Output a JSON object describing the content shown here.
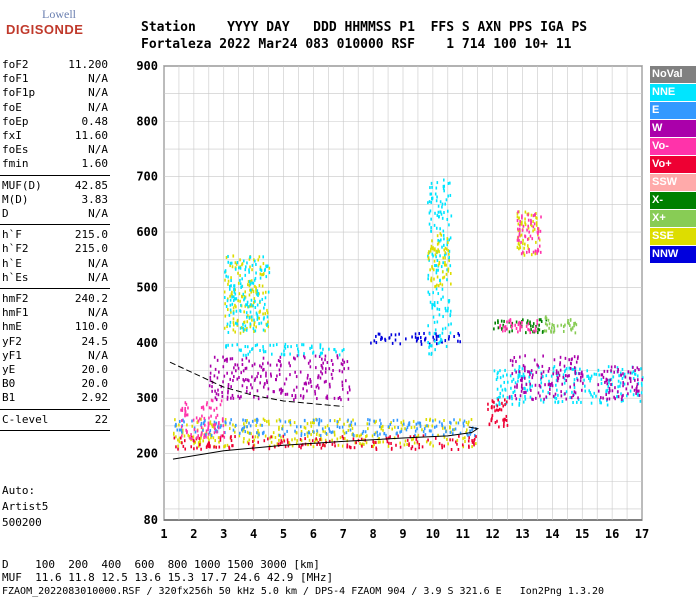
{
  "logo": {
    "top": "Lowell",
    "main": "DIGISONDE"
  },
  "header": {
    "line1": "Station    YYYY DAY   DDD HHMMSS P1  FFS S AXN PPS IGA PS",
    "line2": "Fortaleza 2022 Mar24 083 010000 RSF    1 714 100 10+ 11"
  },
  "params": [
    {
      "k": "foF2",
      "v": "11.200"
    },
    {
      "k": "foF1",
      "v": "N/A"
    },
    {
      "k": "foF1p",
      "v": "N/A"
    },
    {
      "k": "foE",
      "v": "N/A"
    },
    {
      "k": "foEp",
      "v": "0.48"
    },
    {
      "k": "fxI",
      "v": "11.60"
    },
    {
      "k": "foEs",
      "v": "N/A"
    },
    {
      "k": "fmin",
      "v": "1.60"
    },
    {
      "k": "MUF(D)",
      "v": "42.85"
    },
    {
      "k": "M(D)",
      "v": "3.83"
    },
    {
      "k": "D",
      "v": "N/A"
    },
    {
      "k": "h`F",
      "v": "215.0"
    },
    {
      "k": "h`F2",
      "v": "215.0"
    },
    {
      "k": "h`E",
      "v": "N/A"
    },
    {
      "k": "h`Es",
      "v": "N/A"
    },
    {
      "k": "hmF2",
      "v": "240.2"
    },
    {
      "k": "hmF1",
      "v": "N/A"
    },
    {
      "k": "hmE",
      "v": "110.0"
    },
    {
      "k": "yF2",
      "v": "24.5"
    },
    {
      "k": "yF1",
      "v": "N/A"
    },
    {
      "k": "yE",
      "v": "20.0"
    },
    {
      "k": "B0",
      "v": "20.0"
    },
    {
      "k": "B1",
      "v": "2.92"
    },
    {
      "k": "C-level",
      "v": "22"
    }
  ],
  "auto": {
    "label": "Auto:",
    "system": "Artist5",
    "version": "500200"
  },
  "footer": {
    "d_line": "D    100  200  400  600  800 1000 1500 3000 [km]",
    "muf_line": "MUF  11.6 11.8 12.5 13.6 15.3 17.7 24.6 42.9 [MHz]",
    "file_line": "FZAOM_2022083010000.RSF / 320fx256h 50 kHz 5.0 km / DPS-4 FZAOM 904 / 3.9 S 321.6 E   Ion2Png 1.3.20"
  },
  "legend": [
    {
      "label": "NoVal",
      "color": "#808080"
    },
    {
      "label": "NNE",
      "color": "#00e5ff"
    },
    {
      "label": "E",
      "color": "#3399ff"
    },
    {
      "label": "W",
      "color": "#aa00aa"
    },
    {
      "label": "Vo-",
      "color": "#ff33aa"
    },
    {
      "label": "Vo+",
      "color": "#ee0033"
    },
    {
      "label": "SSW",
      "color": "#ffaaaa"
    },
    {
      "label": "X-",
      "color": "#008000"
    },
    {
      "label": "X+",
      "color": "#88cc55"
    },
    {
      "label": "SSE",
      "color": "#dddd00"
    },
    {
      "label": "NNW",
      "color": "#0000dd"
    }
  ],
  "chart_data": {
    "type": "scatter",
    "xlim": [
      1,
      17
    ],
    "ylim": [
      80,
      900
    ],
    "x_ticks": [
      1,
      2,
      3,
      4,
      5,
      6,
      7,
      8,
      9,
      10,
      11,
      12,
      13,
      14,
      15,
      16,
      17
    ],
    "y_ticks": [
      80,
      200,
      300,
      400,
      500,
      600,
      700,
      800,
      900
    ],
    "grid": true,
    "clusters": [
      {
        "x": [
          1.3,
          11.5
        ],
        "y": [
          215,
          265
        ],
        "color": "#dddd00"
      },
      {
        "x": [
          1.3,
          11.5
        ],
        "y": [
          235,
          265
        ],
        "color": "#3399ff"
      },
      {
        "x": [
          1.3,
          11.5
        ],
        "y": [
          210,
          235
        ],
        "color": "#ee0033"
      },
      {
        "x": [
          1.5,
          3.0
        ],
        "y": [
          230,
          300
        ],
        "color": "#ff33aa"
      },
      {
        "x": [
          2.5,
          7.2
        ],
        "y": [
          300,
          380
        ],
        "color": "#aa00aa"
      },
      {
        "x": [
          3.0,
          7.0
        ],
        "y": [
          380,
          400
        ],
        "color": "#00e5ff"
      },
      {
        "x": [
          7.8,
          11.0
        ],
        "y": [
          400,
          420
        ],
        "color": "#0000dd"
      },
      {
        "x": [
          9.8,
          10.6
        ],
        "y": [
          380,
          700
        ],
        "color": "#00e5ff"
      },
      {
        "x": [
          9.8,
          10.6
        ],
        "y": [
          500,
          600
        ],
        "color": "#dddd00"
      },
      {
        "x": [
          12.0,
          13.8
        ],
        "y": [
          420,
          445
        ],
        "color": "#008000"
      },
      {
        "x": [
          12.2,
          13.5
        ],
        "y": [
          420,
          445
        ],
        "color": "#ff33aa"
      },
      {
        "x": [
          13.7,
          14.8
        ],
        "y": [
          420,
          450
        ],
        "color": "#88cc55"
      },
      {
        "x": [
          12.0,
          17.0
        ],
        "y": [
          290,
          360
        ],
        "color": "#00e5ff"
      },
      {
        "x": [
          12.5,
          15.0
        ],
        "y": [
          300,
          380
        ],
        "color": "#aa00aa"
      },
      {
        "x": [
          15.5,
          17.0
        ],
        "y": [
          300,
          360
        ],
        "color": "#aa00aa"
      },
      {
        "x": [
          12.8,
          13.6
        ],
        "y": [
          560,
          640
        ],
        "color": "#dddd00"
      },
      {
        "x": [
          12.8,
          13.6
        ],
        "y": [
          560,
          640
        ],
        "color": "#ff33aa"
      },
      {
        "x": [
          3.0,
          4.5
        ],
        "y": [
          420,
          560
        ],
        "color": "#dddd00"
      },
      {
        "x": [
          3.0,
          4.5
        ],
        "y": [
          420,
          560
        ],
        "color": "#00e5ff"
      },
      {
        "x": [
          11.8,
          12.5
        ],
        "y": [
          250,
          300
        ],
        "color": "#ee0033"
      }
    ],
    "profile_lower": [
      [
        1.3,
        190
      ],
      [
        3.0,
        205
      ],
      [
        5.0,
        215
      ],
      [
        7.0,
        222
      ],
      [
        9.0,
        228
      ],
      [
        10.5,
        232
      ],
      [
        11.3,
        238
      ],
      [
        11.5,
        245
      ],
      [
        11.2,
        248
      ]
    ],
    "profile_dashed": [
      [
        1.2,
        365
      ],
      [
        2.0,
        345
      ],
      [
        3.0,
        320
      ],
      [
        4.0,
        305
      ],
      [
        5.0,
        295
      ],
      [
        6.0,
        290
      ],
      [
        7.0,
        285
      ]
    ]
  }
}
